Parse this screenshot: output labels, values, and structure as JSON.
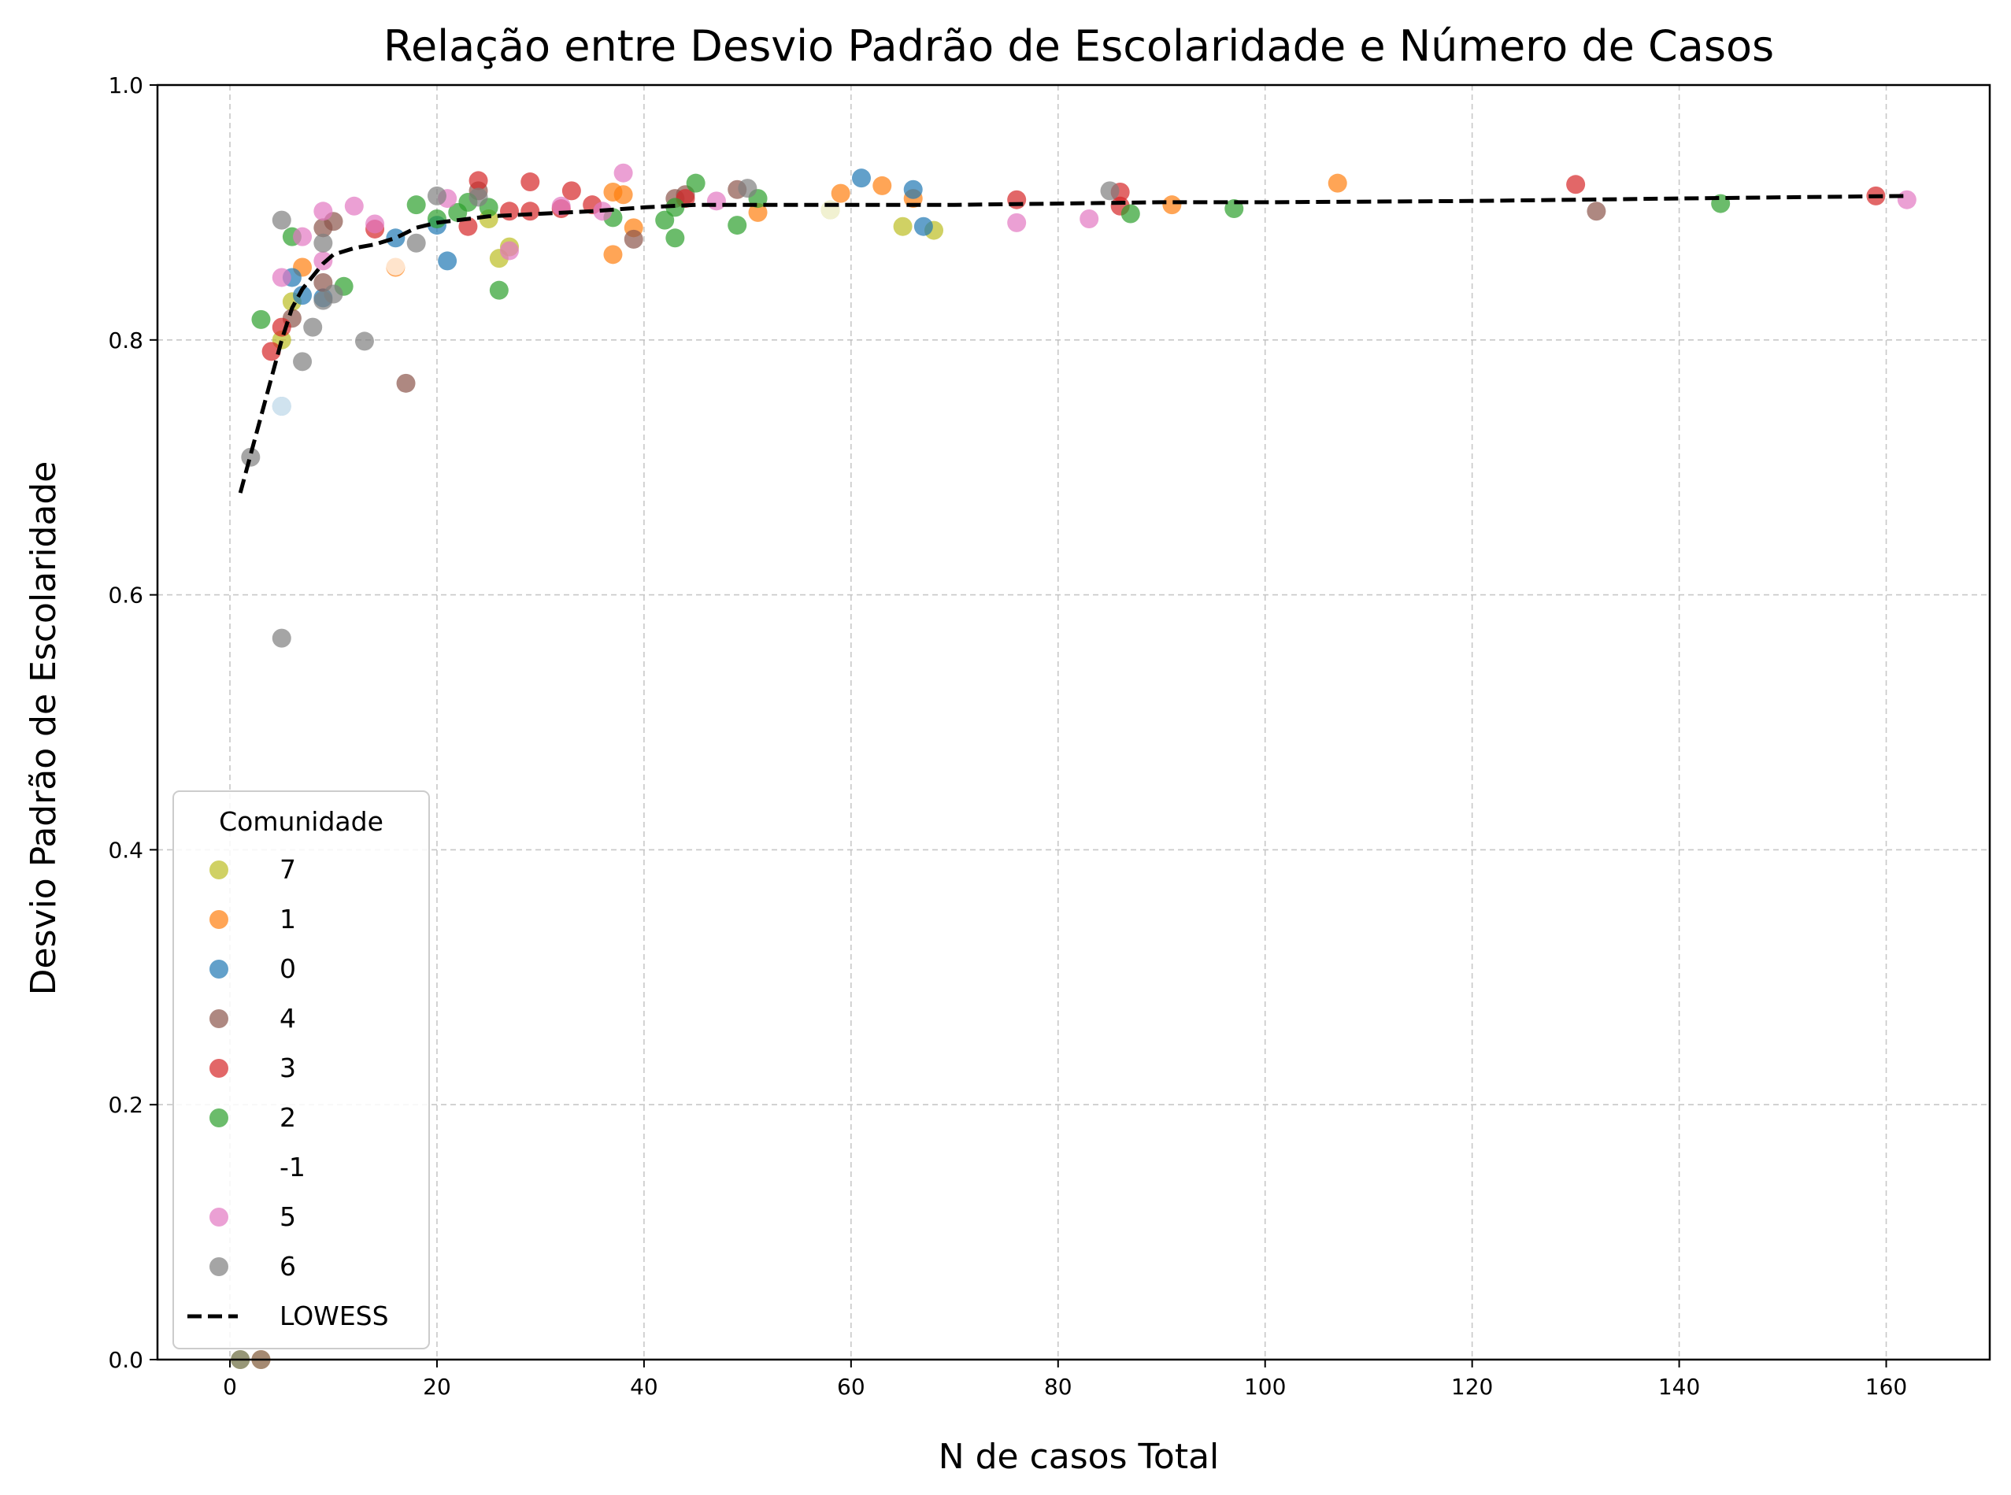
{
  "chart_data": {
    "type": "scatter",
    "title": "Relação entre Desvio Padrão de Escolaridade e Número de Casos",
    "xlabel": "N de casos Total",
    "ylabel": "Desvio Padrão de Escolaridade",
    "xlim": [
      -7,
      170
    ],
    "ylim": [
      0,
      1
    ],
    "xticks": [
      0,
      20,
      40,
      60,
      80,
      100,
      120,
      140,
      160
    ],
    "yticks": [
      0.0,
      0.2,
      0.4,
      0.6,
      0.8,
      1.0
    ],
    "xtick_labels": [
      "0",
      "20",
      "40",
      "60",
      "80",
      "100",
      "120",
      "140",
      "160"
    ],
    "ytick_labels": [
      "0.0",
      "0.2",
      "0.4",
      "0.6",
      "0.8",
      "1.0"
    ],
    "grid": true,
    "legend_title": "Comunidade",
    "legend_position": "lower-left",
    "series": [
      {
        "name": "7",
        "color": "#bcbd22",
        "points": [
          [
            1,
            0.0
          ],
          [
            5,
            0.8
          ],
          [
            6,
            0.83
          ],
          [
            25,
            0.895
          ],
          [
            26,
            0.864
          ],
          [
            27,
            0.873
          ],
          [
            58,
            0.902
          ],
          [
            65,
            0.889
          ],
          [
            68,
            0.886
          ]
        ]
      },
      {
        "name": "1",
        "color": "#ff7f0e",
        "points": [
          [
            3,
            0.0
          ],
          [
            7,
            0.857
          ],
          [
            16,
            0.857
          ],
          [
            37,
            0.867
          ],
          [
            37,
            0.916
          ],
          [
            38,
            0.914
          ],
          [
            39,
            0.888
          ],
          [
            51,
            0.9
          ],
          [
            59,
            0.915
          ],
          [
            63,
            0.921
          ],
          [
            66,
            0.911
          ],
          [
            91,
            0.906
          ],
          [
            107,
            0.923
          ]
        ]
      },
      {
        "name": "0",
        "color": "#1f77b4",
        "points": [
          [
            5,
            0.748
          ],
          [
            6,
            0.849
          ],
          [
            7,
            0.835
          ],
          [
            9,
            0.833
          ],
          [
            16,
            0.88
          ],
          [
            20,
            0.89
          ],
          [
            21,
            0.862
          ],
          [
            61,
            0.927
          ],
          [
            66,
            0.918
          ],
          [
            67,
            0.889
          ]
        ]
      },
      {
        "name": "4",
        "color": "#8c564b",
        "points": [
          [
            6,
            0.817
          ],
          [
            9,
            0.888
          ],
          [
            9,
            0.845
          ],
          [
            10,
            0.893
          ],
          [
            17,
            0.766
          ],
          [
            24,
            0.917
          ],
          [
            39,
            0.879
          ],
          [
            43,
            0.911
          ],
          [
            44,
            0.914
          ],
          [
            49,
            0.918
          ],
          [
            132,
            0.901
          ]
        ]
      },
      {
        "name": "3",
        "color": "#d62728",
        "points": [
          [
            4,
            0.791
          ],
          [
            5,
            0.81
          ],
          [
            14,
            0.887
          ],
          [
            23,
            0.889
          ],
          [
            24,
            0.925
          ],
          [
            27,
            0.901
          ],
          [
            29,
            0.901
          ],
          [
            29,
            0.924
          ],
          [
            32,
            0.903
          ],
          [
            33,
            0.917
          ],
          [
            35,
            0.906
          ],
          [
            44,
            0.911
          ],
          [
            76,
            0.91
          ],
          [
            86,
            0.916
          ],
          [
            86,
            0.905
          ],
          [
            130,
            0.922
          ],
          [
            159,
            0.913
          ]
        ]
      },
      {
        "name": "2",
        "color": "#2ca02c",
        "points": [
          [
            3,
            0.816
          ],
          [
            6,
            0.881
          ],
          [
            11,
            0.842
          ],
          [
            18,
            0.906
          ],
          [
            20,
            0.895
          ],
          [
            22,
            0.9
          ],
          [
            23,
            0.908
          ],
          [
            25,
            0.904
          ],
          [
            26,
            0.839
          ],
          [
            37,
            0.896
          ],
          [
            42,
            0.894
          ],
          [
            43,
            0.88
          ],
          [
            43,
            0.904
          ],
          [
            45,
            0.923
          ],
          [
            49,
            0.89
          ],
          [
            51,
            0.911
          ],
          [
            87,
            0.899
          ],
          [
            97,
            0.903
          ],
          [
            144,
            0.907
          ]
        ]
      },
      {
        "name": "-1",
        "color": "#ffffff",
        "points": [
          [
            5,
            0.748
          ],
          [
            8,
            0.811
          ],
          [
            16,
            0.858
          ],
          [
            58,
            0.902
          ]
        ]
      },
      {
        "name": "5",
        "color": "#e377c2",
        "points": [
          [
            5,
            0.849
          ],
          [
            7,
            0.881
          ],
          [
            9,
            0.901
          ],
          [
            9,
            0.862
          ],
          [
            12,
            0.905
          ],
          [
            14,
            0.891
          ],
          [
            21,
            0.911
          ],
          [
            27,
            0.87
          ],
          [
            32,
            0.905
          ],
          [
            36,
            0.901
          ],
          [
            38,
            0.931
          ],
          [
            47,
            0.909
          ],
          [
            76,
            0.892
          ],
          [
            83,
            0.895
          ],
          [
            162,
            0.91
          ]
        ]
      },
      {
        "name": "6",
        "color": "#7f7f7f",
        "points": [
          [
            1,
            0.0
          ],
          [
            2,
            0.708
          ],
          [
            3,
            0.0
          ],
          [
            5,
            0.566
          ],
          [
            5,
            0.894
          ],
          [
            7,
            0.783
          ],
          [
            8,
            0.81
          ],
          [
            9,
            0.876
          ],
          [
            9,
            0.831
          ],
          [
            10,
            0.836
          ],
          [
            13,
            0.799
          ],
          [
            18,
            0.876
          ],
          [
            20,
            0.913
          ],
          [
            24,
            0.912
          ],
          [
            50,
            0.919
          ],
          [
            85,
            0.917
          ]
        ]
      },
      {
        "name": "LOWESS",
        "color": "#000000",
        "kind": "line",
        "points": [
          [
            1,
            0.68
          ],
          [
            2,
            0.71
          ],
          [
            3,
            0.74
          ],
          [
            4,
            0.77
          ],
          [
            5,
            0.8
          ],
          [
            6,
            0.825
          ],
          [
            7,
            0.84
          ],
          [
            8,
            0.85
          ],
          [
            9,
            0.86
          ],
          [
            10,
            0.867
          ],
          [
            12,
            0.872
          ],
          [
            14,
            0.875
          ],
          [
            16,
            0.88
          ],
          [
            18,
            0.888
          ],
          [
            20,
            0.892
          ],
          [
            25,
            0.897
          ],
          [
            30,
            0.899
          ],
          [
            35,
            0.901
          ],
          [
            40,
            0.904
          ],
          [
            45,
            0.906
          ],
          [
            50,
            0.906
          ],
          [
            60,
            0.906
          ],
          [
            70,
            0.906
          ],
          [
            80,
            0.907
          ],
          [
            90,
            0.908
          ],
          [
            100,
            0.908
          ],
          [
            120,
            0.909
          ],
          [
            140,
            0.911
          ],
          [
            162,
            0.913
          ]
        ]
      }
    ]
  }
}
